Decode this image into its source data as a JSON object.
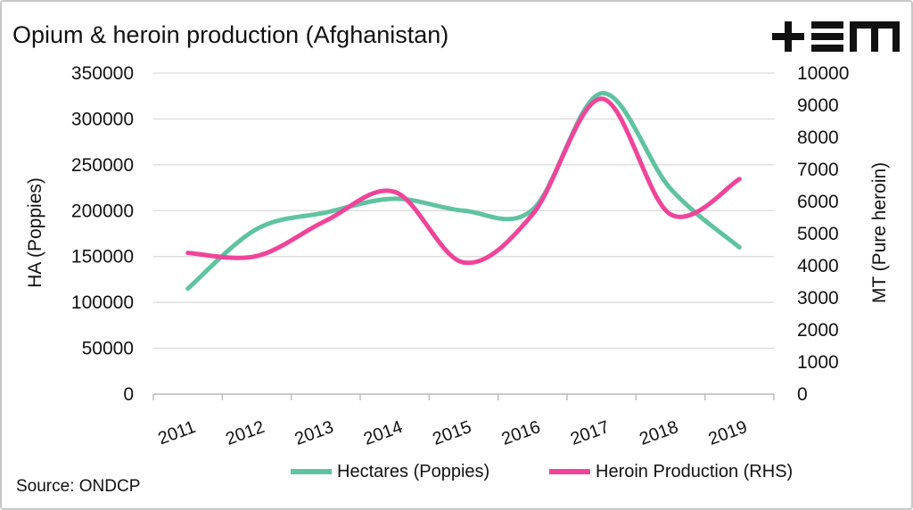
{
  "brand": {
    "logo_text": "+EM"
  },
  "source": "Source: ONDCP",
  "chart_data": {
    "type": "line",
    "title": "Opium & heroin production (Afghanistan)",
    "xlabel": "",
    "ylabel": "HA (Poppies)",
    "y2label": "MT (Pure heroin)",
    "categories": [
      "2011",
      "2012",
      "2013",
      "2014",
      "2015",
      "2016",
      "2017",
      "2018",
      "2019"
    ],
    "ylim": [
      0,
      350000
    ],
    "yticks": [
      "0",
      "50000",
      "100000",
      "150000",
      "200000",
      "250000",
      "300000",
      "350000"
    ],
    "y2lim": [
      0,
      10000
    ],
    "y2ticks": [
      "0",
      "1000",
      "2000",
      "3000",
      "4000",
      "5000",
      "6000",
      "7000",
      "8000",
      "9000",
      "10000"
    ],
    "grid": true,
    "legend": "bottom",
    "series": [
      {
        "name": "Hectares (Poppies)",
        "axis": "left",
        "color": "#5fc3a1",
        "values": [
          115000,
          180000,
          198000,
          213000,
          200000,
          201000,
          328000,
          224000,
          160000
        ]
      },
      {
        "name": "Heroin Production (RHS)",
        "axis": "right",
        "color": "#f0449a",
        "values": [
          4400,
          4300,
          5400,
          6300,
          4100,
          5600,
          9200,
          5600,
          6700
        ]
      }
    ]
  }
}
